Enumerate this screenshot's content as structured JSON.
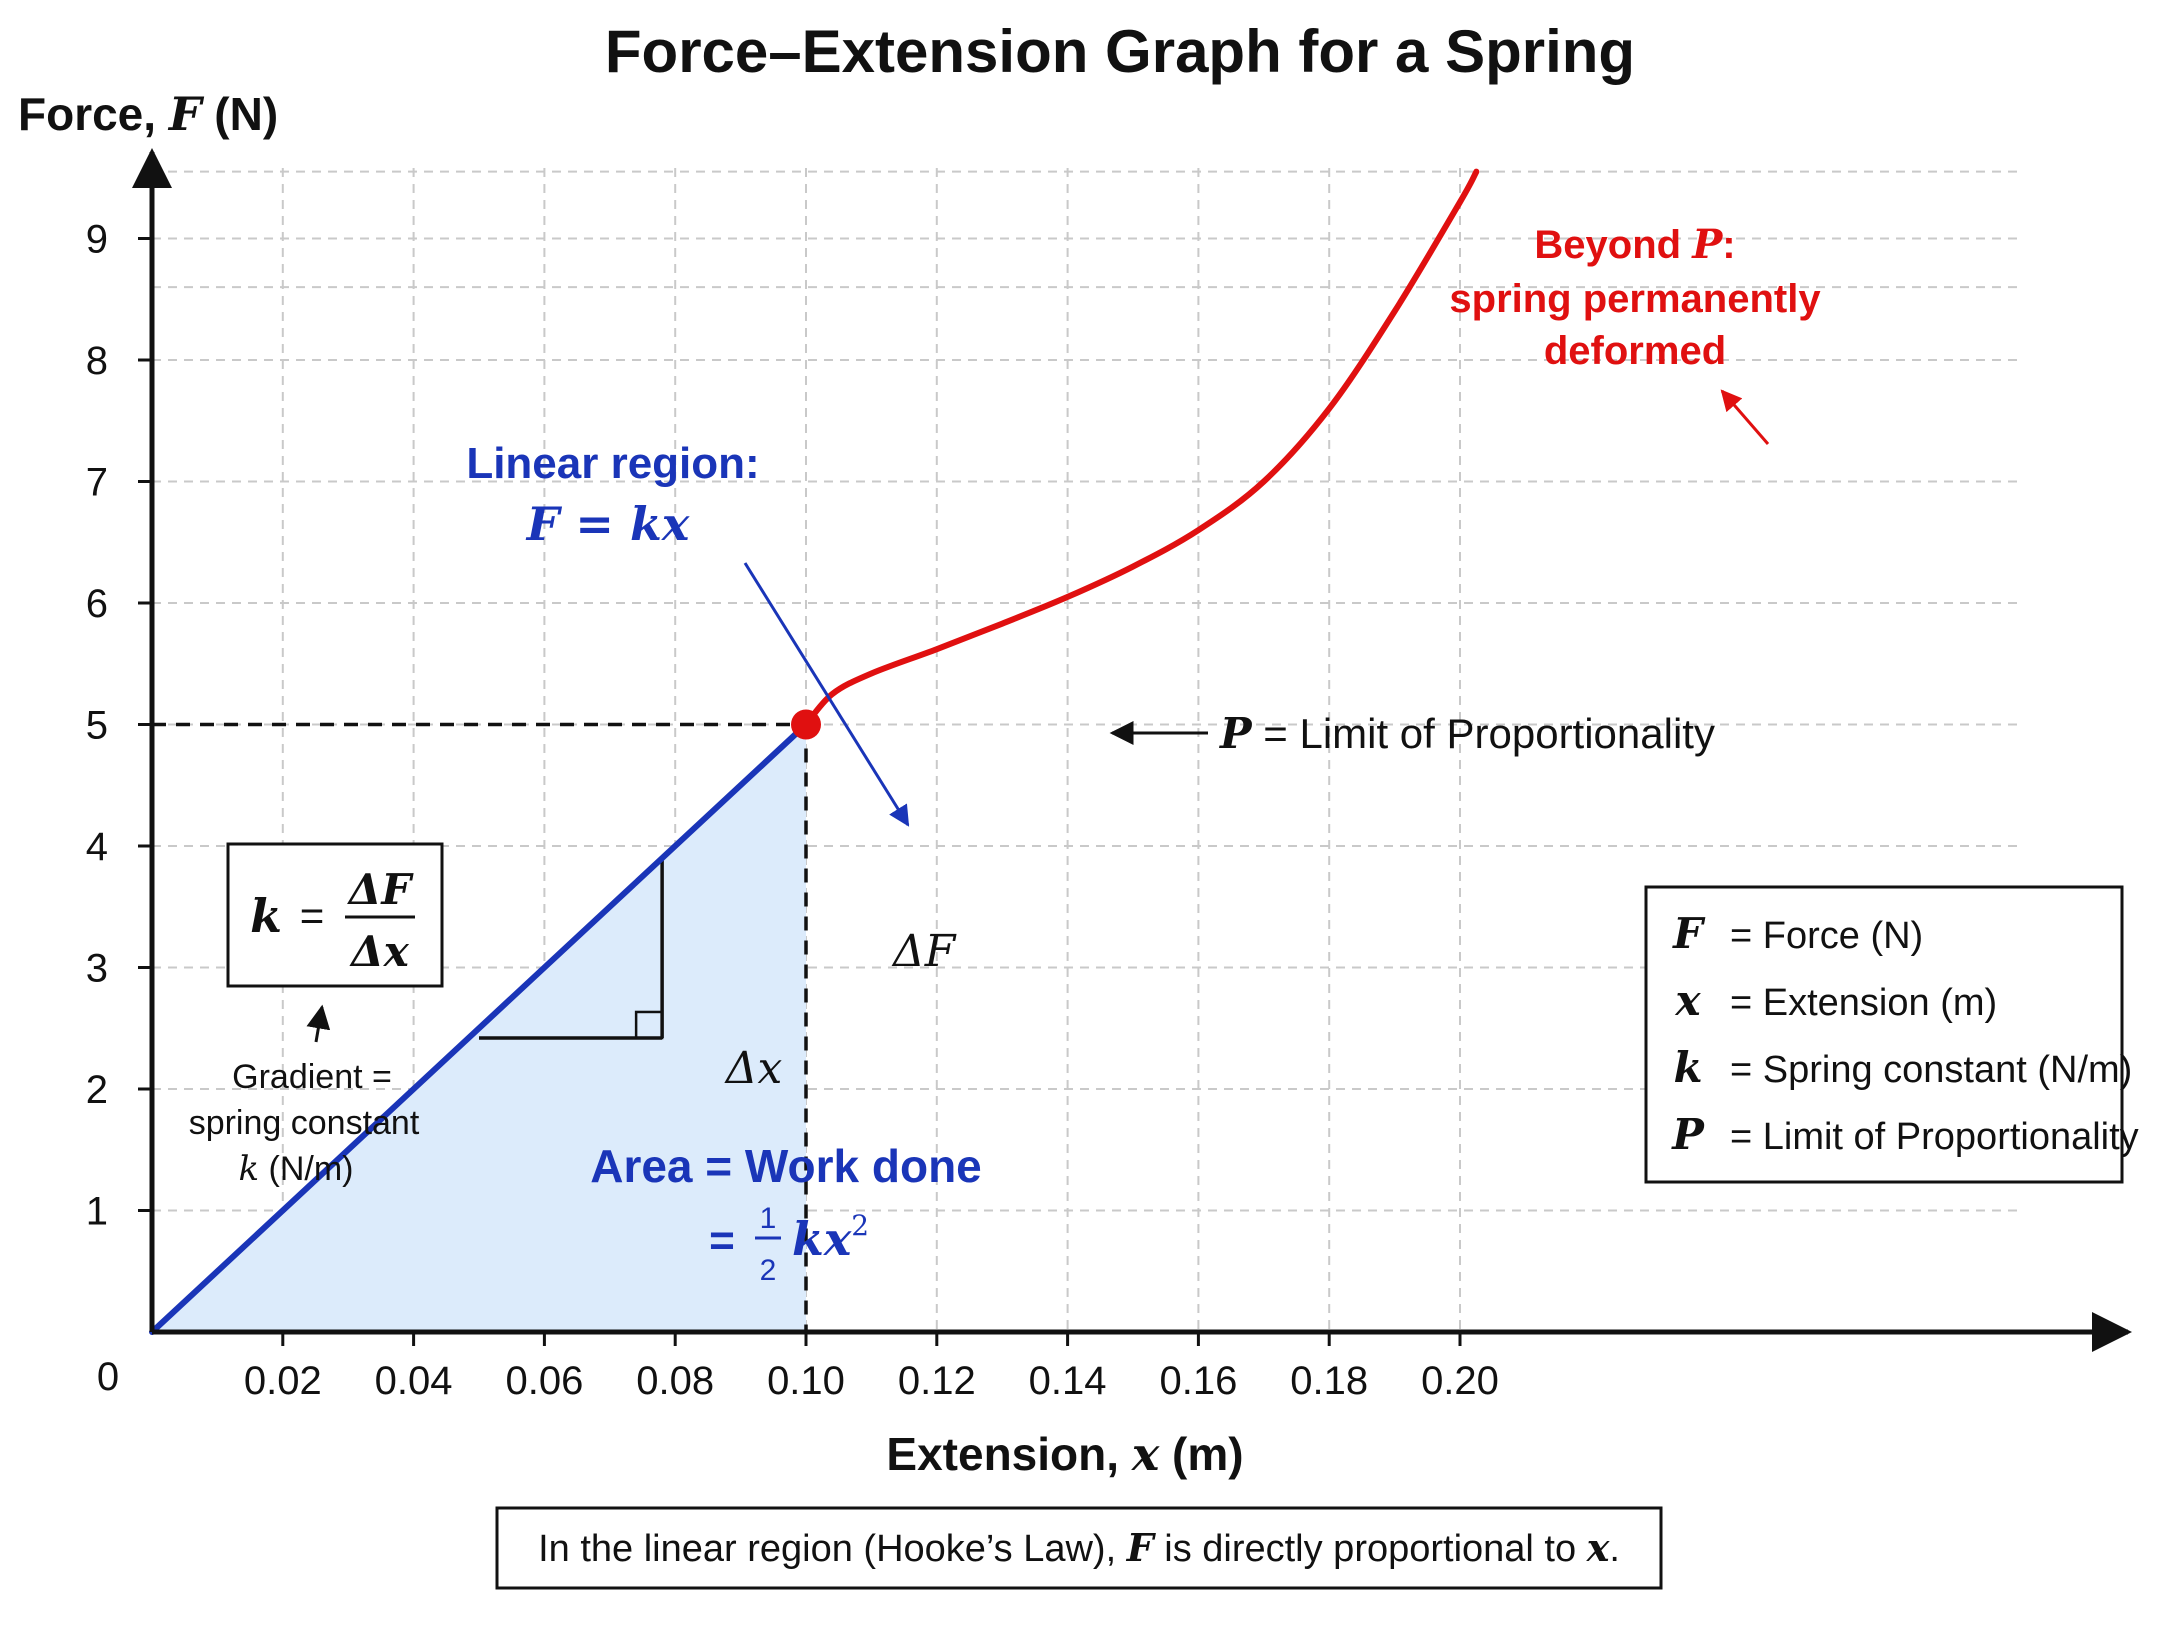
{
  "chart_data": {
    "type": "line",
    "title": "Force–Extension Graph for a Spring",
    "xlabel": {
      "text": "Extension, ",
      "var": "x",
      "unit": " (m)"
    },
    "ylabel": {
      "text": "Force, ",
      "var": "F",
      "unit": " (N)"
    },
    "origin_label": "0",
    "xlim": [
      0,
      0.21
    ],
    "ylim": [
      0,
      9.6
    ],
    "x_ticks": [
      {
        "value": 0.02,
        "label": "0.02"
      },
      {
        "value": 0.04,
        "label": "0.04"
      },
      {
        "value": 0.06,
        "label": "0.06"
      },
      {
        "value": 0.08,
        "label": "0.08"
      },
      {
        "value": 0.1,
        "label": "0.10"
      },
      {
        "value": 0.12,
        "label": "0.12"
      },
      {
        "value": 0.14,
        "label": "0.14"
      },
      {
        "value": 0.16,
        "label": "0.16"
      },
      {
        "value": 0.18,
        "label": "0.18"
      },
      {
        "value": 0.2,
        "label": "0.20"
      }
    ],
    "y_ticks": [
      {
        "value": 1,
        "label": "1"
      },
      {
        "value": 2,
        "label": "2"
      },
      {
        "value": 3,
        "label": "3"
      },
      {
        "value": 4,
        "label": "4"
      },
      {
        "value": 5,
        "label": "5"
      },
      {
        "value": 6,
        "label": "6"
      },
      {
        "value": 7,
        "label": "7"
      },
      {
        "value": 8,
        "label": "8"
      },
      {
        "value": 9,
        "label": "9"
      }
    ],
    "grid": true,
    "series": [
      {
        "color": "#1a35b8",
        "points": [
          [
            0,
            0
          ],
          [
            0.1,
            5.0
          ]
        ]
      },
      {
        "color": "#e01010",
        "points": [
          [
            0.1,
            5.0
          ],
          [
            0.104,
            5.25
          ],
          [
            0.11,
            5.42
          ],
          [
            0.12,
            5.62
          ],
          [
            0.13,
            5.83
          ],
          [
            0.14,
            6.05
          ],
          [
            0.15,
            6.3
          ],
          [
            0.16,
            6.6
          ],
          [
            0.17,
            7.0
          ],
          [
            0.18,
            7.6
          ],
          [
            0.19,
            8.4
          ],
          [
            0.2,
            9.3
          ],
          [
            0.2025,
            9.55
          ]
        ]
      }
    ],
    "limit_point": {
      "x": 0.1,
      "y": 5.0,
      "color": "#e01010"
    },
    "shaded_area": {
      "x_from": 0,
      "x_to": 0.1,
      "color": "#dcebfb"
    },
    "gradient_triangle": {
      "x1": 0.05,
      "y1": 2.42,
      "x2": 0.078,
      "y2": 3.9
    },
    "annotations": {
      "linear_region": {
        "line1": "Linear region:",
        "eq_left": "F",
        "eq_mid": " = ",
        "eq_right": "kx"
      },
      "beyond": {
        "line1_text": "Beyond ",
        "line1_var": "P",
        "line1_colon": ":",
        "line2": "spring permanently",
        "line3": "deformed"
      },
      "limit": {
        "var": "P",
        "text": " = Limit of Proportionality"
      },
      "delta_f": "ΔF",
      "delta_x": "Δx",
      "area_line1": "Area = Work done",
      "area_eq": "=",
      "area_num": "1",
      "area_den": "2",
      "area_expr": "kx",
      "area_exp": "2",
      "formula": {
        "lhs": "k",
        "eq": "=",
        "num": "ΔF",
        "den": "Δx"
      },
      "gradient_note": {
        "line1": "Gradient =",
        "line2": "spring constant",
        "line3_var": "k",
        "line3_unit": " (N/m)"
      }
    },
    "legend": {
      "position": "right",
      "entries": [
        {
          "symbol": "F",
          "text": "= Force (N)"
        },
        {
          "symbol": "x",
          "text": "= Extension (m)"
        },
        {
          "symbol": "k",
          "text": "= Spring constant (N/m)"
        },
        {
          "symbol": "P",
          "text": "= Limit of Proportionality"
        }
      ]
    },
    "footnote": {
      "t1": "In the linear region (Hooke’s Law), ",
      "v1": "F",
      "t2": " is directly proportional to ",
      "v2": "x",
      "t3": "."
    }
  }
}
